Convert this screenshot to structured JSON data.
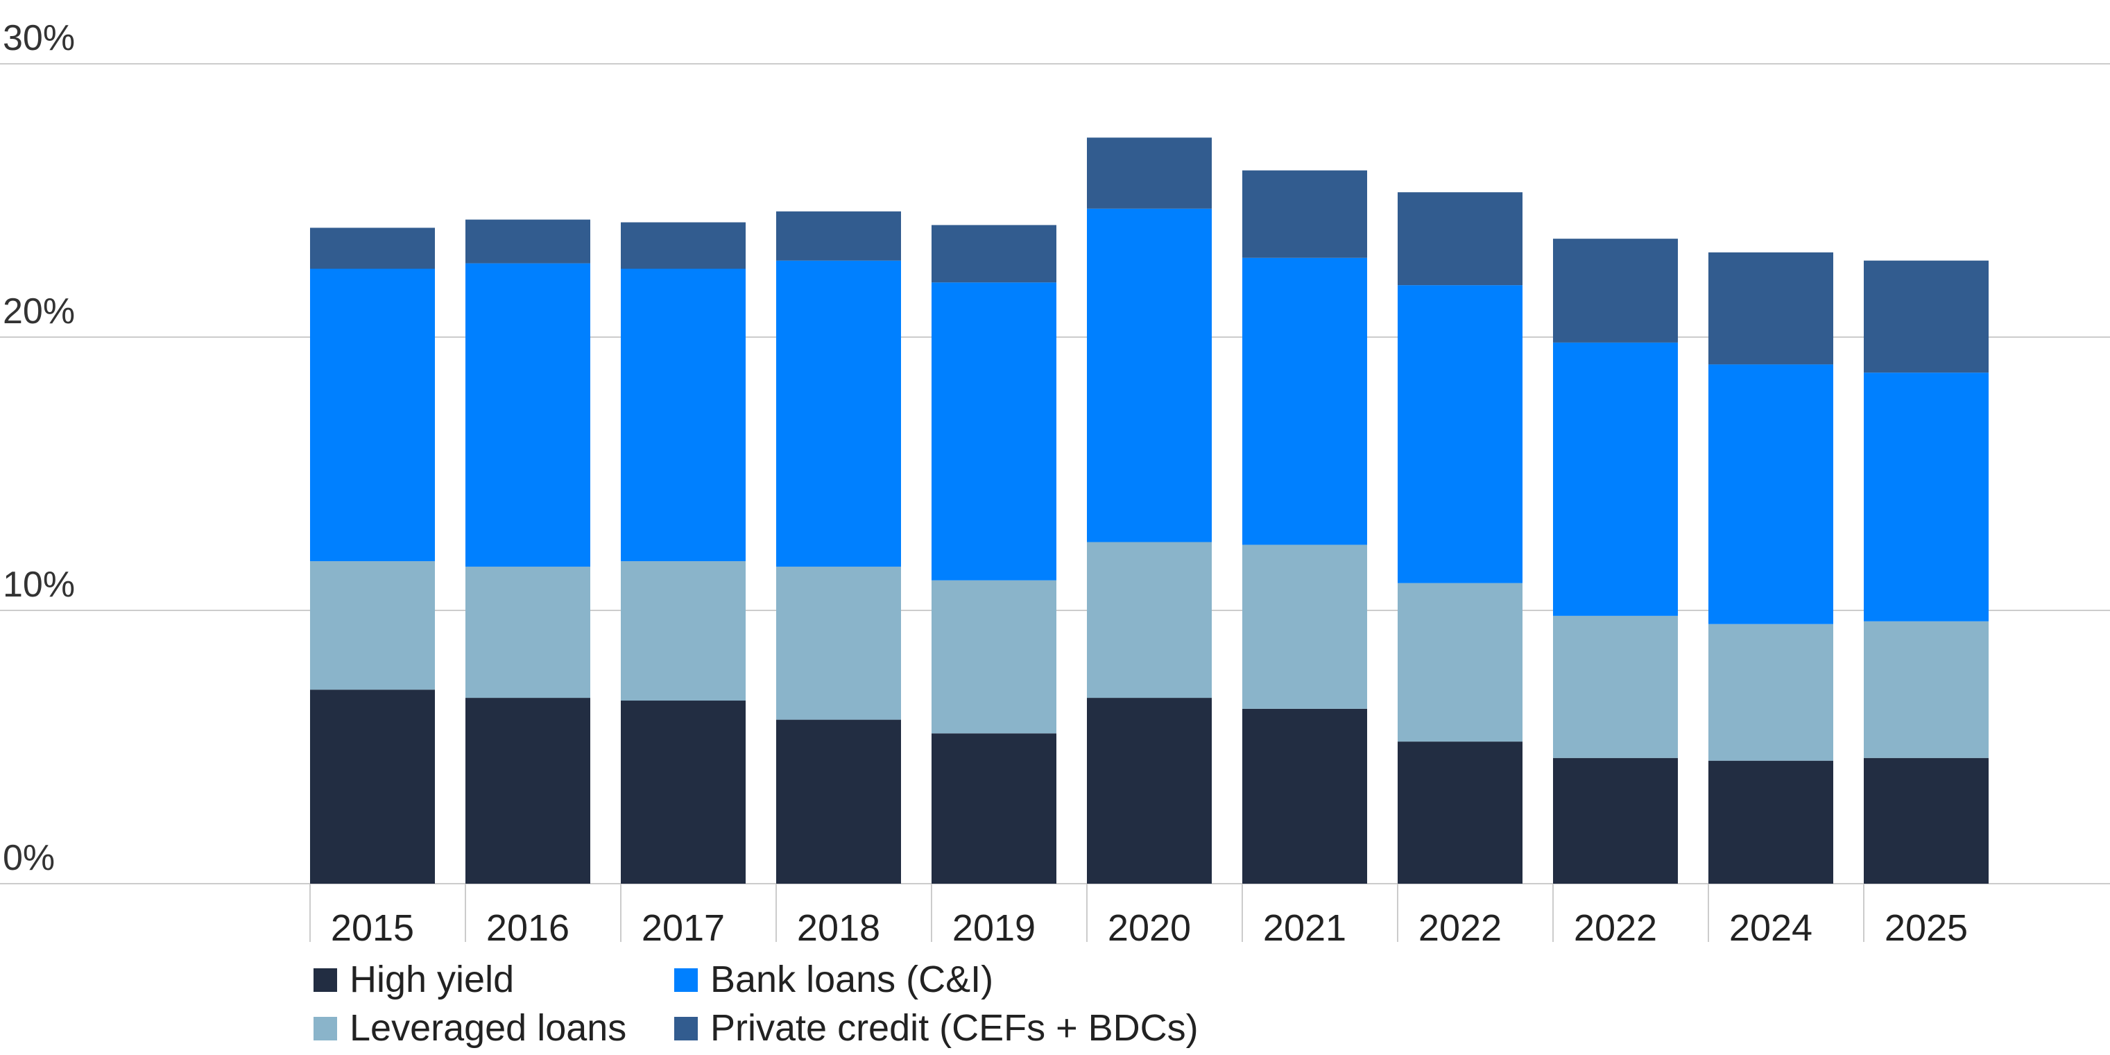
{
  "chart_data": {
    "type": "bar",
    "stacked": true,
    "title": "",
    "xlabel": "",
    "ylabel": "",
    "ylim": [
      0,
      30
    ],
    "yticks": [
      {
        "value": 0,
        "label": "0%"
      },
      {
        "value": 10,
        "label": "10%"
      },
      {
        "value": 20,
        "label": "20%"
      },
      {
        "value": 30,
        "label": "30%"
      }
    ],
    "categories": [
      "2015",
      "2016",
      "2017",
      "2018",
      "2019",
      "2020",
      "2021",
      "2022",
      "2022",
      "2024",
      "2025"
    ],
    "series": [
      {
        "name": "High yield",
        "color": "#222D42",
        "values": [
          7.1,
          6.8,
          6.7,
          6.0,
          5.5,
          6.8,
          6.4,
          5.2,
          4.6,
          4.5,
          4.6
        ]
      },
      {
        "name": "Leveraged loans",
        "color": "#8AB4CA",
        "values": [
          4.7,
          4.8,
          5.1,
          5.6,
          5.6,
          5.7,
          6.0,
          5.8,
          5.2,
          5.0,
          5.0
        ]
      },
      {
        "name": "Bank loans (C&I)",
        "color": "#0080FF",
        "values": [
          10.7,
          11.1,
          10.7,
          11.2,
          10.9,
          12.2,
          10.5,
          10.9,
          10.0,
          9.5,
          9.1
        ]
      },
      {
        "name": "Private credit (CEFs + BDCs)",
        "color": "#325C8F",
        "values": [
          1.5,
          1.6,
          1.7,
          1.8,
          2.1,
          2.6,
          3.2,
          3.4,
          3.8,
          4.1,
          4.1
        ]
      }
    ],
    "legend": {
      "position": "bottom-left",
      "columns": 2
    },
    "grid": true,
    "gridline_color": "#CCCCCC"
  }
}
